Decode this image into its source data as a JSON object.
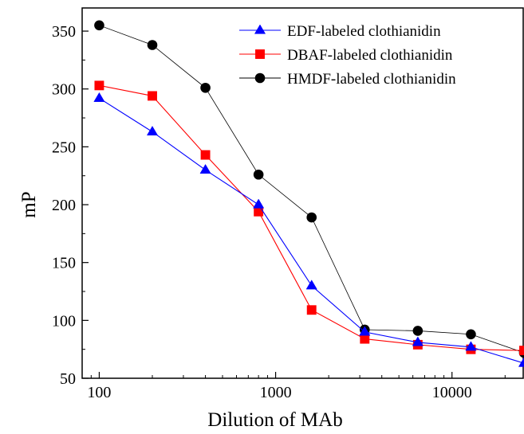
{
  "chart_data": {
    "type": "line",
    "xscale": "log",
    "x": [
      100,
      200,
      400,
      800,
      1600,
      3200,
      6400,
      12800,
      25600
    ],
    "xlim": [
      80,
      25600
    ],
    "ylim": [
      50,
      370
    ],
    "xticks": [
      100,
      1000,
      10000
    ],
    "xtick_labels": [
      "100",
      "1000",
      "10000"
    ],
    "yticks": [
      50,
      100,
      150,
      200,
      250,
      300,
      350
    ],
    "ytick_labels": [
      "50",
      "100",
      "150",
      "200",
      "250",
      "300",
      "350"
    ],
    "xlabel": "Dilution of MAb",
    "ylabel": "mP",
    "grid": false,
    "legend_position": "top-right",
    "series": [
      {
        "name": "EDF-labeled clothianidin",
        "color": "#0000ff",
        "marker": "triangle",
        "values": [
          292,
          263,
          230,
          200,
          130,
          90,
          81,
          77,
          63
        ]
      },
      {
        "name": "DBAF-labeled clothianidin",
        "color": "#ff0000",
        "marker": "square",
        "values": [
          303,
          294,
          243,
          194,
          109,
          84,
          79,
          75,
          74
        ]
      },
      {
        "name": "HMDF-labeled clothianidin",
        "color": "#000000",
        "marker": "circle",
        "values": [
          355,
          338,
          301,
          226,
          189,
          92,
          91,
          88,
          72
        ]
      }
    ]
  }
}
